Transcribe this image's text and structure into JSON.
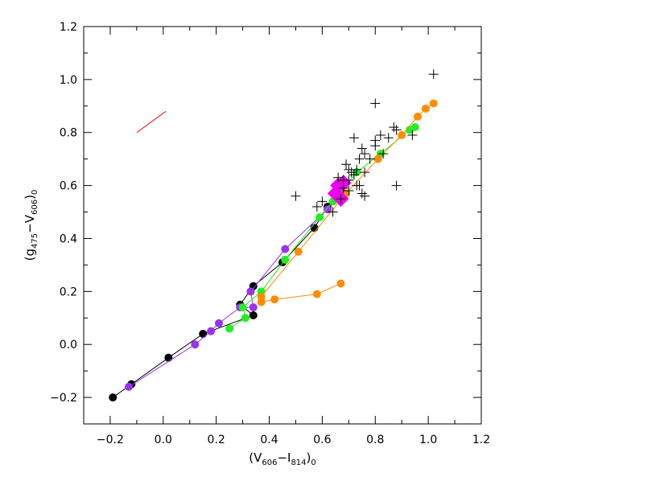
{
  "chart_data": {
    "type": "scatter",
    "title": "",
    "xlabel": {
      "main": "(V",
      "sub1": "606",
      "mid": "−I",
      "sub2": "814",
      "end": ")",
      "sub3": "0"
    },
    "ylabel": {
      "main": "(g",
      "sub1": "475",
      "mid": "−V",
      "sub2": "606",
      "end": ")",
      "sub3": "0"
    },
    "xlim": [
      -0.3,
      1.2
    ],
    "ylim": [
      -0.3,
      1.2
    ],
    "xticks": [
      -0.2,
      0.0,
      0.2,
      0.4,
      0.6,
      0.8,
      1.0,
      1.2
    ],
    "yticks": [
      -0.2,
      0.0,
      0.2,
      0.4,
      0.6,
      0.8,
      1.0,
      1.2
    ],
    "xtick_labels": [
      "−0.2",
      "0.0",
      "0.2",
      "0.4",
      "0.6",
      "0.8",
      "1.0",
      "1.2"
    ],
    "ytick_labels": [
      "−0.2",
      "0.0",
      "0.2",
      "0.4",
      "0.6",
      "0.8",
      "1.0",
      "1.2"
    ],
    "grid": false,
    "reddening_vector": {
      "x": [
        -0.1,
        0.01
      ],
      "y": [
        0.8,
        0.88
      ],
      "color": "#e00000"
    },
    "series": [
      {
        "color": "#000000",
        "marker": "circle",
        "connected": true,
        "x": [
          0.68,
          0.62,
          0.57,
          0.45,
          0.34,
          0.29,
          0.34,
          0.15,
          0.02,
          -0.12,
          -0.19
        ],
        "y": [
          0.56,
          0.52,
          0.44,
          0.31,
          0.22,
          0.15,
          0.11,
          0.04,
          -0.05,
          -0.15,
          -0.2
        ]
      },
      {
        "color": "#9933ee",
        "marker": "circle",
        "connected": true,
        "x": [
          0.67,
          0.62,
          0.46,
          0.33,
          0.34,
          0.29,
          0.21,
          0.18,
          0.12,
          -0.13
        ],
        "y": [
          0.57,
          0.51,
          0.36,
          0.2,
          0.14,
          0.14,
          0.08,
          0.05,
          0.0,
          -0.16
        ]
      },
      {
        "color": "#22ee22",
        "marker": "circle",
        "connected": true,
        "x": [
          0.95,
          0.93,
          0.82,
          0.73,
          0.64,
          0.59,
          0.46,
          0.37,
          0.3,
          0.31,
          0.25
        ],
        "y": [
          0.82,
          0.81,
          0.72,
          0.65,
          0.54,
          0.48,
          0.32,
          0.2,
          0.14,
          0.1,
          0.06
        ]
      },
      {
        "color": "#ff8c00",
        "marker": "circle",
        "connected": true,
        "x": [
          1.02,
          0.99,
          0.96,
          0.9,
          0.81,
          0.69,
          0.51,
          0.37,
          0.37,
          0.42,
          0.58,
          0.67
        ],
        "y": [
          0.91,
          0.89,
          0.86,
          0.79,
          0.7,
          0.57,
          0.35,
          0.18,
          0.16,
          0.17,
          0.19,
          0.23
        ]
      },
      {
        "color": "#ee00ee",
        "marker": "diamond",
        "connected": false,
        "x": [
          0.66,
          0.68,
          0.65,
          0.67
        ],
        "y": [
          0.6,
          0.61,
          0.57,
          0.55
        ]
      },
      {
        "color": "#000000",
        "marker": "plus",
        "connected": false,
        "x": [
          1.02,
          0.8,
          0.87,
          0.88,
          0.82,
          0.8,
          0.85,
          0.72,
          0.75,
          0.76,
          0.78,
          0.8,
          0.83,
          0.69,
          0.74,
          0.7,
          0.71,
          0.73,
          0.76,
          0.66,
          0.68,
          0.7,
          0.72,
          0.74,
          0.68,
          0.7,
          0.73,
          0.76,
          0.88,
          0.5,
          0.6,
          0.58,
          0.64,
          0.75,
          0.94,
          0.67
        ],
        "y": [
          1.02,
          0.91,
          0.82,
          0.81,
          0.79,
          0.77,
          0.78,
          0.78,
          0.74,
          0.72,
          0.7,
          0.75,
          0.72,
          0.68,
          0.7,
          0.66,
          0.65,
          0.66,
          0.65,
          0.63,
          0.62,
          0.62,
          0.64,
          0.6,
          0.59,
          0.58,
          0.6,
          0.56,
          0.6,
          0.56,
          0.54,
          0.52,
          0.5,
          0.57,
          0.79,
          0.55
        ]
      }
    ]
  }
}
